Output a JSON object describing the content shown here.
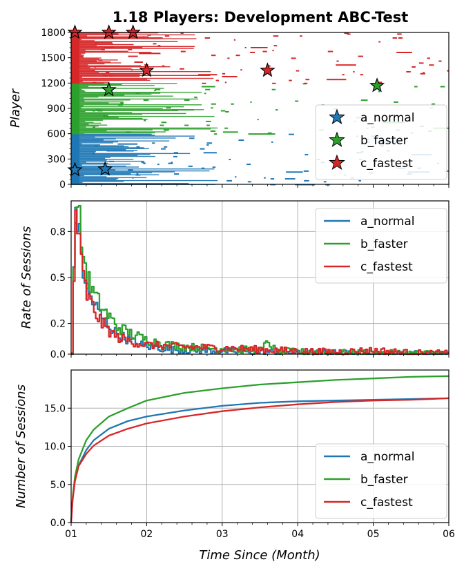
{
  "title": "1.18 Players: Development ABC-Test",
  "xlabel": "Time Since (Month)",
  "x_ticks": [
    "01",
    "02",
    "03",
    "04",
    "05",
    "06"
  ],
  "colors": {
    "a_normal": "#1f77b4",
    "b_faster": "#2ca02c",
    "c_fastest": "#d62728"
  },
  "chart_data": [
    {
      "type": "scatter",
      "panel": "player-raster",
      "ylabel": "Player",
      "ylim": [
        0,
        1800
      ],
      "xlim": [
        1,
        6
      ],
      "y_ticks": [
        "0",
        "300",
        "600",
        "900",
        "1200",
        "1500",
        "1800"
      ],
      "legend": [
        "a_normal",
        "b_faster",
        "c_fastest"
      ],
      "legend_position": "lower-right",
      "series": [
        {
          "name": "a_normal",
          "y_range": [
            0,
            600
          ],
          "star_points": [
            {
              "x": 1.05,
              "y": 170
            },
            {
              "x": 1.45,
              "y": 180
            }
          ]
        },
        {
          "name": "b_faster",
          "y_range": [
            600,
            1200
          ],
          "star_points": [
            {
              "x": 1.5,
              "y": 1120
            },
            {
              "x": 5.05,
              "y": 1170
            }
          ]
        },
        {
          "name": "c_fastest",
          "y_range": [
            1200,
            1800
          ],
          "star_points": [
            {
              "x": 1.05,
              "y": 1800
            },
            {
              "x": 1.5,
              "y": 1800
            },
            {
              "x": 1.82,
              "y": 1800
            },
            {
              "x": 2.0,
              "y": 1350
            },
            {
              "x": 3.6,
              "y": 1350
            }
          ]
        }
      ]
    },
    {
      "type": "line",
      "panel": "rate-of-sessions",
      "ylabel": "Rate of Sessions",
      "ylim": [
        0,
        1.0
      ],
      "xlim": [
        1,
        6
      ],
      "y_ticks": [
        "0.0",
        "0.2",
        "0.5",
        "0.8"
      ],
      "y_tick_values": [
        0,
        0.2,
        0.5,
        0.8
      ],
      "grid": true,
      "legend_position": "top-right",
      "series": [
        {
          "name": "a_normal",
          "x": [
            1.0,
            1.05,
            1.1,
            1.15,
            1.2,
            1.3,
            1.4,
            1.5,
            1.6,
            1.8,
            2.0,
            2.3,
            2.6,
            3.0,
            3.5,
            4.0,
            4.5,
            5.0,
            5.5,
            6.0
          ],
          "y": [
            0.0,
            1.0,
            0.75,
            0.55,
            0.42,
            0.32,
            0.24,
            0.18,
            0.13,
            0.08,
            0.05,
            0.03,
            0.025,
            0.02,
            0.015,
            0.01,
            0.008,
            0.006,
            0.004,
            0.003
          ]
        },
        {
          "name": "b_faster",
          "x": [
            1.0,
            1.05,
            1.1,
            1.15,
            1.2,
            1.3,
            1.4,
            1.5,
            1.6,
            1.8,
            2.0,
            2.3,
            2.6,
            3.0,
            3.5,
            3.6,
            3.7,
            4.0,
            4.5,
            5.0,
            5.5,
            6.0
          ],
          "y": [
            0.0,
            1.0,
            0.85,
            0.65,
            0.5,
            0.38,
            0.3,
            0.24,
            0.18,
            0.13,
            0.09,
            0.06,
            0.045,
            0.035,
            0.025,
            0.08,
            0.02,
            0.015,
            0.01,
            0.008,
            0.006,
            0.004
          ]
        },
        {
          "name": "c_fastest",
          "x": [
            1.0,
            1.05,
            1.1,
            1.15,
            1.2,
            1.3,
            1.4,
            1.5,
            1.6,
            1.8,
            2.0,
            2.3,
            2.6,
            3.0,
            3.5,
            4.0,
            4.5,
            5.0,
            5.5,
            6.0
          ],
          "y": [
            0.0,
            0.95,
            0.7,
            0.5,
            0.38,
            0.28,
            0.2,
            0.15,
            0.11,
            0.08,
            0.06,
            0.05,
            0.045,
            0.04,
            0.03,
            0.02,
            0.015,
            0.025,
            0.008,
            0.005
          ]
        }
      ]
    },
    {
      "type": "line",
      "panel": "number-of-sessions",
      "ylabel": "Number of Sessions",
      "ylim": [
        0,
        20
      ],
      "xlim": [
        1,
        6
      ],
      "y_ticks": [
        "0.0",
        "5.0",
        "10.0",
        "15.0"
      ],
      "y_tick_values": [
        0,
        5,
        10,
        15
      ],
      "grid": true,
      "legend_position": "lower-right",
      "series": [
        {
          "name": "a_normal",
          "x": [
            1.0,
            1.02,
            1.05,
            1.1,
            1.2,
            1.3,
            1.5,
            1.75,
            2.0,
            2.5,
            3.0,
            3.5,
            4.0,
            4.5,
            5.0,
            5.5,
            6.0
          ],
          "y": [
            0.0,
            3.0,
            5.5,
            7.5,
            9.5,
            10.8,
            12.3,
            13.3,
            13.9,
            14.7,
            15.3,
            15.7,
            15.9,
            16.0,
            16.1,
            16.2,
            16.3
          ]
        },
        {
          "name": "b_faster",
          "x": [
            1.0,
            1.02,
            1.05,
            1.1,
            1.2,
            1.3,
            1.5,
            1.75,
            2.0,
            2.5,
            3.0,
            3.5,
            4.0,
            4.5,
            5.0,
            5.5,
            6.0
          ],
          "y": [
            0.0,
            3.3,
            6.0,
            8.3,
            10.8,
            12.2,
            13.9,
            15.0,
            16.0,
            17.0,
            17.6,
            18.1,
            18.4,
            18.7,
            18.9,
            19.1,
            19.2
          ]
        },
        {
          "name": "c_fastest",
          "x": [
            1.0,
            1.02,
            1.05,
            1.1,
            1.2,
            1.3,
            1.5,
            1.75,
            2.0,
            2.5,
            3.0,
            3.5,
            4.0,
            4.5,
            5.0,
            5.5,
            6.0
          ],
          "y": [
            0.0,
            3.0,
            5.4,
            7.4,
            9.0,
            10.1,
            11.4,
            12.3,
            13.0,
            13.9,
            14.6,
            15.1,
            15.5,
            15.8,
            16.0,
            16.1,
            16.3
          ]
        }
      ]
    }
  ]
}
